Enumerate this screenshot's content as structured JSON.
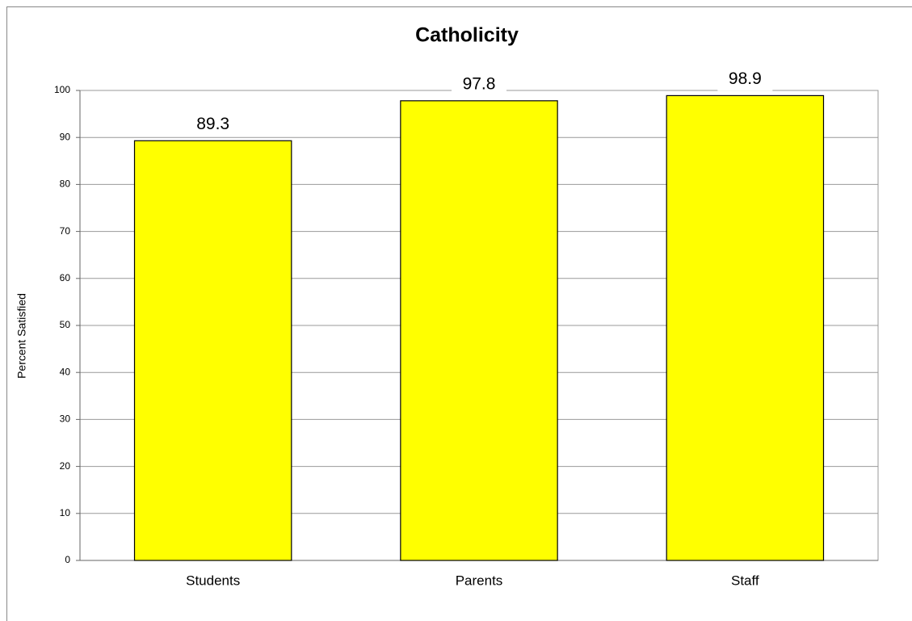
{
  "chart_data": {
    "type": "bar",
    "title": "Catholicity",
    "y_label": "Percent Satisfied",
    "categories": [
      "Students",
      "Parents",
      "Staff"
    ],
    "values": [
      89.3,
      97.8,
      98.9
    ],
    "color": "#ffff00",
    "ylim": [
      0,
      100
    ],
    "yticks": [
      0,
      10,
      20,
      30,
      40,
      50,
      60,
      70,
      80,
      90,
      100
    ],
    "grid": true
  }
}
